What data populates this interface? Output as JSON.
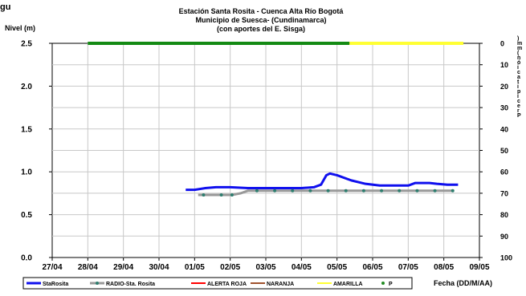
{
  "chart_data": {
    "type": "line",
    "title_lines": [
      "Estación Santa Rosita - Cuenca Alta Río Bogotá",
      "Municipio de Suesca- (Cundinamarca)",
      "(con aportes del  E. Sisga)"
    ],
    "top_left_fragment": "gu",
    "ylabel": "Nivel (m)",
    "y2label_fragment": ")\nm\nm\n(\nn\nó\ni\nc\na\nt\ni\np\ni\nc\ne\nr\nP",
    "xlabel": "Fecha (DD/M/AA)",
    "ylim": [
      0,
      2.5
    ],
    "y_ticks": [
      "0.0",
      "0.5",
      "1.0",
      "1.5",
      "2.0",
      "2.5"
    ],
    "y2lim": [
      100,
      0
    ],
    "y2_ticks": [
      "0",
      "10",
      "20",
      "30",
      "40",
      "50",
      "60",
      "70",
      "80",
      "90",
      "100"
    ],
    "x_ticks": [
      "27/04",
      "28/04",
      "29/04",
      "30/04",
      "01/05",
      "02/05",
      "03/05",
      "04/05",
      "05/05",
      "06/05",
      "07/05",
      "08/05",
      "09/05"
    ],
    "grid": true,
    "legend_position": "bottom",
    "series": [
      {
        "name": "StaRosita",
        "color": "#1010ee",
        "points": [
          [
            3.75,
            0.79
          ],
          [
            4.0,
            0.79
          ],
          [
            4.3,
            0.81
          ],
          [
            4.6,
            0.82
          ],
          [
            5.0,
            0.82
          ],
          [
            5.5,
            0.81
          ],
          [
            6.0,
            0.81
          ],
          [
            6.5,
            0.81
          ],
          [
            7.0,
            0.81
          ],
          [
            7.35,
            0.82
          ],
          [
            7.55,
            0.85
          ],
          [
            7.7,
            0.96
          ],
          [
            7.8,
            0.98
          ],
          [
            8.0,
            0.96
          ],
          [
            8.4,
            0.9
          ],
          [
            8.8,
            0.86
          ],
          [
            9.2,
            0.84
          ],
          [
            9.6,
            0.84
          ],
          [
            10.0,
            0.84
          ],
          [
            10.2,
            0.87
          ],
          [
            10.6,
            0.87
          ],
          [
            10.8,
            0.86
          ],
          [
            11.1,
            0.85
          ],
          [
            11.4,
            0.85
          ]
        ]
      },
      {
        "name": "RADIO-Sta. Rosita",
        "color": "#999999",
        "marker_color": "#2e7d6e",
        "points": [
          [
            4.1,
            0.73
          ],
          [
            4.5,
            0.73
          ],
          [
            4.8,
            0.73
          ],
          [
            5.05,
            0.73
          ],
          [
            5.3,
            0.75
          ],
          [
            5.5,
            0.78
          ],
          [
            5.75,
            0.78
          ],
          [
            6.25,
            0.78
          ],
          [
            6.75,
            0.78
          ],
          [
            7.25,
            0.78
          ],
          [
            7.75,
            0.78
          ],
          [
            8.25,
            0.78
          ],
          [
            8.75,
            0.78
          ],
          [
            9.25,
            0.78
          ],
          [
            9.75,
            0.78
          ],
          [
            10.25,
            0.78
          ],
          [
            10.75,
            0.78
          ],
          [
            11.25,
            0.78
          ]
        ],
        "markers": [
          [
            4.25,
            0.73
          ],
          [
            4.75,
            0.73
          ],
          [
            5.05,
            0.73
          ],
          [
            5.75,
            0.78
          ],
          [
            6.25,
            0.78
          ],
          [
            6.75,
            0.78
          ],
          [
            7.25,
            0.78
          ],
          [
            7.75,
            0.78
          ],
          [
            8.25,
            0.78
          ],
          [
            8.75,
            0.78
          ],
          [
            9.25,
            0.78
          ],
          [
            9.75,
            0.78
          ],
          [
            10.25,
            0.78
          ],
          [
            10.75,
            0.78
          ],
          [
            11.25,
            0.78
          ]
        ]
      },
      {
        "name": "ALERTA ROJA",
        "color": "#ff0000",
        "points": []
      },
      {
        "name": "NARANJA",
        "color": "#a0522d",
        "points": []
      },
      {
        "name": "AMARILLA",
        "color": "#ffff33",
        "points": [
          [
            8.35,
            2.5
          ],
          [
            11.55,
            2.5
          ]
        ]
      },
      {
        "name": "P",
        "color": "#228b22",
        "marker_only": true,
        "points": []
      }
    ],
    "green_band": {
      "color": "#138a13",
      "points": [
        [
          1.0,
          2.5
        ],
        [
          8.35,
          2.5
        ]
      ]
    }
  }
}
